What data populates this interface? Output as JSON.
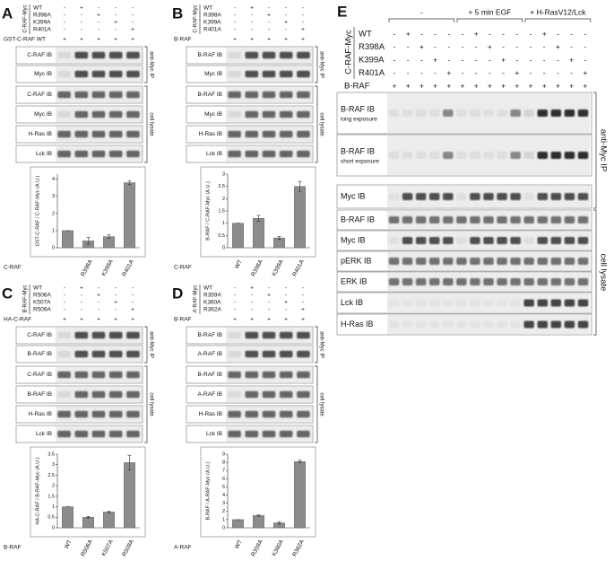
{
  "panels": [
    {
      "label": "A",
      "construct": "C-RAF-Myc",
      "rows": [
        {
          "name": "WT",
          "signs": [
            "-",
            "+",
            "-",
            "-",
            "-"
          ]
        },
        {
          "name": "R398A",
          "signs": [
            "-",
            "-",
            "+",
            "-",
            "-"
          ]
        },
        {
          "name": "K399A",
          "signs": [
            "-",
            "-",
            "-",
            "+",
            "-"
          ]
        },
        {
          "name": "R401A",
          "signs": [
            "-",
            "-",
            "-",
            "-",
            "+"
          ]
        }
      ],
      "cotransfected": {
        "name": "GST-C-RAF WT",
        "signs": [
          "+",
          "+",
          "+",
          "+",
          "+"
        ]
      },
      "ip_label": "anti-Myc IP",
      "ip_blots": [
        {
          "name": "C-RAF IB"
        },
        {
          "name": "Myc IB"
        }
      ],
      "lysate_label": "cell lysate",
      "lysate_blots": [
        {
          "name": "C-RAF IB"
        },
        {
          "name": "Myc IB"
        },
        {
          "name": "H-Ras IB"
        },
        {
          "name": "Lck IB"
        }
      ],
      "chart": {
        "type": "bar",
        "ylabel": "GST-C-RAF / C-RAF-Myc (A.U.)",
        "xlabel": "C-RAF",
        "categories": [
          null,
          "R398A",
          "K399A",
          "R401A"
        ],
        "values": [
          1.0,
          0.4,
          0.65,
          3.8
        ],
        "errors": [
          0,
          0.2,
          0.1,
          0.12
        ],
        "ylim": [
          0,
          4.3
        ],
        "yticks": [
          0,
          1,
          2,
          3,
          4
        ],
        "color": "#8c8c8c"
      }
    },
    {
      "label": "B",
      "construct": "C-RAF-Myc",
      "rows": [
        {
          "name": "WT",
          "signs": [
            "-",
            "+",
            "-",
            "-",
            "-"
          ]
        },
        {
          "name": "R398A",
          "signs": [
            "-",
            "-",
            "+",
            "-",
            "-"
          ]
        },
        {
          "name": "K399A",
          "signs": [
            "-",
            "-",
            "-",
            "+",
            "-"
          ]
        },
        {
          "name": "R401A",
          "signs": [
            "-",
            "-",
            "-",
            "-",
            "+"
          ]
        }
      ],
      "cotransfected": {
        "name": "B-RAF",
        "signs": [
          "+",
          "+",
          "+",
          "+",
          "+"
        ]
      },
      "ip_label": "anti-Myc IP",
      "ip_blots": [
        {
          "name": "B-RAF IB"
        },
        {
          "name": "Myc IB"
        }
      ],
      "lysate_label": "cell lysate",
      "lysate_blots": [
        {
          "name": "B-RAF IB"
        },
        {
          "name": "Myc IB"
        },
        {
          "name": "H-Ras IB"
        },
        {
          "name": "Lck IB"
        }
      ],
      "chart": {
        "type": "bar",
        "ylabel": "B-RAF / C-RAF-Myc (A.U.)",
        "xlabel": "C-RAF",
        "categories": [
          "WT",
          "R398A",
          "K399A",
          "R401A"
        ],
        "values": [
          1.0,
          1.2,
          0.4,
          2.5
        ],
        "errors": [
          0,
          0.12,
          0.06,
          0.2
        ],
        "ylim": [
          0,
          3
        ],
        "yticks": [
          0,
          0.5,
          1,
          1.5,
          2,
          2.5,
          3
        ],
        "color": "#8c8c8c"
      }
    },
    {
      "label": "C",
      "construct": "B-RAF-Myc",
      "rows": [
        {
          "name": "WT",
          "signs": [
            "-",
            "+",
            "-",
            "-",
            "-"
          ]
        },
        {
          "name": "R506A",
          "signs": [
            "-",
            "-",
            "+",
            "-",
            "-"
          ]
        },
        {
          "name": "K507A",
          "signs": [
            "-",
            "-",
            "-",
            "+",
            "-"
          ]
        },
        {
          "name": "R509A",
          "signs": [
            "-",
            "-",
            "-",
            "-",
            "+"
          ]
        }
      ],
      "cotransfected": {
        "name": "HA-C-RAF",
        "signs": [
          "+",
          "+",
          "+",
          "+",
          "+"
        ]
      },
      "ip_label": "anti-Myc IP",
      "ip_blots": [
        {
          "name": "C-RAF IB"
        },
        {
          "name": "B-RAF IB"
        }
      ],
      "lysate_label": "cell lysate",
      "lysate_blots": [
        {
          "name": "C-RAF IB"
        },
        {
          "name": "B-RAF IB"
        },
        {
          "name": "H-Ras IB"
        },
        {
          "name": "Lck IB"
        }
      ],
      "chart": {
        "type": "bar",
        "ylabel": "HA-C-RAF / B-RAF-Myc (A.U.)",
        "xlabel": "B-RAF",
        "categories": [
          "WT",
          "R506A",
          "K507A",
          "R509A"
        ],
        "values": [
          1.0,
          0.5,
          0.75,
          3.1
        ],
        "errors": [
          0,
          0.04,
          0.05,
          0.35
        ],
        "ylim": [
          0,
          3.5
        ],
        "yticks": [
          0,
          0.5,
          1,
          1.5,
          2,
          2.5,
          3,
          3.5
        ],
        "color": "#8c8c8c"
      }
    },
    {
      "label": "D",
      "construct": "A-RAF-Myc",
      "rows": [
        {
          "name": "WT",
          "signs": [
            "-",
            "+",
            "-",
            "-",
            "-"
          ]
        },
        {
          "name": "R359A",
          "signs": [
            "-",
            "-",
            "+",
            "-",
            "-"
          ]
        },
        {
          "name": "K360A",
          "signs": [
            "-",
            "-",
            "-",
            "+",
            "-"
          ]
        },
        {
          "name": "R362A",
          "signs": [
            "-",
            "-",
            "-",
            "-",
            "+"
          ]
        }
      ],
      "cotransfected": {
        "name": "B-RAF",
        "signs": [
          "+",
          "+",
          "+",
          "+",
          "+"
        ]
      },
      "ip_label": "anti-Myc IP",
      "ip_blots": [
        {
          "name": "B-RAF IB"
        },
        {
          "name": "A-RAF IB"
        }
      ],
      "lysate_label": "cell lysate",
      "lysate_blots": [
        {
          "name": "B-RAF IB"
        },
        {
          "name": "A-RAF IB"
        },
        {
          "name": "H-Ras IB"
        },
        {
          "name": "Lck IB"
        }
      ],
      "chart": {
        "type": "bar",
        "ylabel": "B-RAF / A-RAF-Myc (A.U.)",
        "xlabel": "A-RAF",
        "categories": [
          "WT",
          "R359A",
          "K360A",
          "R362A"
        ],
        "values": [
          1.0,
          1.5,
          0.6,
          8.1
        ],
        "errors": [
          0,
          0.1,
          0.15,
          0.15
        ],
        "ylim": [
          0,
          9
        ],
        "yticks": [
          0,
          1,
          2,
          3,
          4,
          5,
          6,
          7,
          8,
          9
        ],
        "color": "#8c8c8c"
      }
    },
    {
      "label": "E",
      "construct": "C-RAF-Myc",
      "lane_groups": [
        "-",
        "+ 5 min EGF",
        "+ H-RasV12/Lck"
      ],
      "rows": [
        {
          "name": "WT",
          "signs": [
            "-",
            "+",
            "-",
            "-",
            "-",
            "-",
            "+",
            "-",
            "-",
            "-",
            "-",
            "+",
            "-",
            "-",
            "-"
          ]
        },
        {
          "name": "R398A",
          "signs": [
            "-",
            "-",
            "+",
            "-",
            "-",
            "-",
            "-",
            "+",
            "-",
            "-",
            "-",
            "-",
            "+",
            "-",
            "-"
          ]
        },
        {
          "name": "K399A",
          "signs": [
            "-",
            "-",
            "-",
            "+",
            "-",
            "-",
            "-",
            "-",
            "+",
            "-",
            "-",
            "-",
            "-",
            "+",
            "-"
          ]
        },
        {
          "name": "R401A",
          "signs": [
            "-",
            "-",
            "-",
            "-",
            "+",
            "-",
            "-",
            "-",
            "-",
            "+",
            "-",
            "-",
            "-",
            "-",
            "+"
          ]
        }
      ],
      "cotransfected": {
        "name": "B-RAF",
        "signs": [
          "+",
          "+",
          "+",
          "+",
          "+",
          "+",
          "+",
          "+",
          "+",
          "+",
          "+",
          "+",
          "+",
          "+",
          "+"
        ]
      },
      "ip_label": "anti-Myc IP",
      "ip_blots": [
        {
          "name": "B-RAF IB",
          "note": "long exposure"
        },
        {
          "name": "B-RAF IB",
          "note": "short exposure"
        },
        {
          "name": "Myc IB"
        }
      ],
      "lysate_label": "cell lysate",
      "lysate_blots": [
        {
          "name": "B-RAF IB"
        },
        {
          "name": "Myc IB"
        },
        {
          "name": "pERK IB"
        },
        {
          "name": "ERK IB"
        },
        {
          "name": "Lck IB"
        },
        {
          "name": "H-Ras IB"
        }
      ]
    }
  ]
}
